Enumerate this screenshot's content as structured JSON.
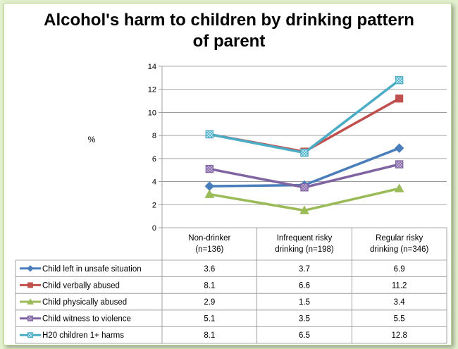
{
  "chart_data": {
    "type": "line",
    "title_line1": "Alcohol's harm to children by drinking pattern",
    "title_line2": "of parent",
    "ylabel": "%",
    "ylim": [
      0,
      14
    ],
    "yticks": [
      0,
      2,
      4,
      6,
      8,
      10,
      12,
      14
    ],
    "grid": true,
    "categories": [
      {
        "line1": "Non-drinker",
        "line2": "(n=136)"
      },
      {
        "line1": "Infrequent risky",
        "line2": "drinking (n=198)"
      },
      {
        "line1": "Regular risky",
        "line2": "drinking (n=346)"
      }
    ],
    "series": [
      {
        "name": "Child left in unsafe situation",
        "values": [
          3.6,
          3.7,
          6.9
        ],
        "labels": [
          "3.6",
          "3.7",
          "6.9"
        ],
        "color": "#4a7ebb",
        "marker": "diamond"
      },
      {
        "name": "Child verbally abused",
        "values": [
          8.1,
          6.6,
          11.2
        ],
        "labels": [
          "8.1",
          "6.6",
          "11.2"
        ],
        "color": "#c0504d",
        "marker": "square"
      },
      {
        "name": "Child physically  abused",
        "values": [
          2.9,
          1.5,
          3.4
        ],
        "labels": [
          "2.9",
          "1.5",
          "3.4"
        ],
        "color": "#9bbb59",
        "marker": "triangle"
      },
      {
        "name": "Child witness to violence",
        "values": [
          5.1,
          3.5,
          5.5
        ],
        "labels": [
          "5.1",
          "3.5",
          "5.5"
        ],
        "color": "#8064a2",
        "marker": "x"
      },
      {
        "name": "H20 children 1+ harms",
        "values": [
          8.1,
          6.5,
          12.8
        ],
        "labels": [
          "8.1",
          "6.5",
          "12.8"
        ],
        "color": "#4bacc6",
        "marker": "star"
      }
    ]
  }
}
